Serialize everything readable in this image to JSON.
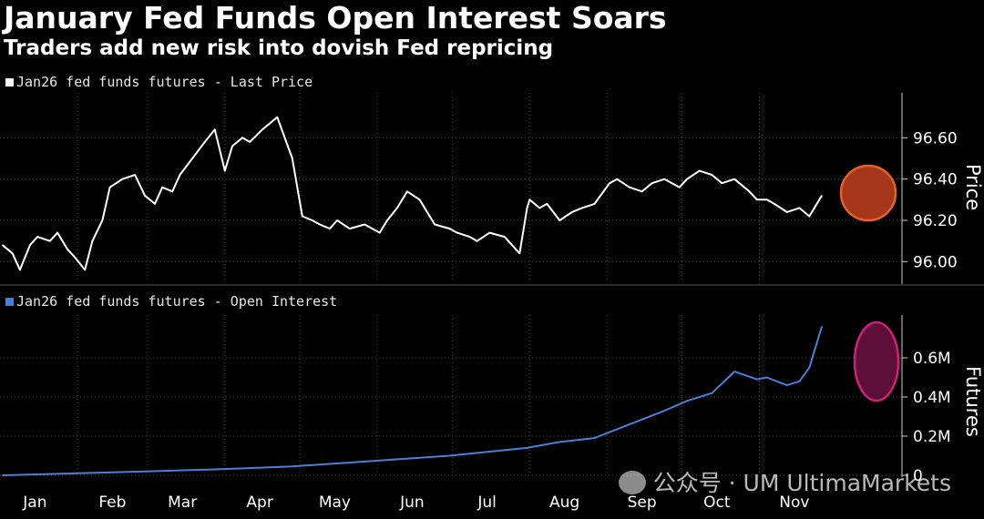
{
  "title": "January Fed Funds Open Interest Soars",
  "subtitle": "Traders add new risk into dovish Fed repricing",
  "watermark": "公众号 · UM UltimaMarkets",
  "colors": {
    "background": "#000000",
    "price_line": "#ffffff",
    "oi_line": "#4a7fd8",
    "price_highlight": "#e8602c",
    "oi_highlight": "#d0207a",
    "grid": "#4a4a4a"
  },
  "chart_data": [
    {
      "type": "line",
      "legend": "Jan26 fed funds futures - Last Price",
      "ylabel": "Price",
      "ylim": [
        95.9,
        96.8
      ],
      "yticks": [
        96.0,
        96.2,
        96.4,
        96.6
      ],
      "ytick_labels": [
        "96.00",
        "96.20",
        "96.40",
        "96.60"
      ],
      "grid": true,
      "x": [
        "Jan 2",
        "Jan 6",
        "Jan 9",
        "Jan 13",
        "Jan 16",
        "Jan 21",
        "Jan 24",
        "Jan 28",
        "Jan 31",
        "Feb 4",
        "Feb 7",
        "Feb 11",
        "Feb 14",
        "Feb 19",
        "Feb 24",
        "Feb 28",
        "Mar 4",
        "Mar 7",
        "Mar 11",
        "Mar 14",
        "Mar 19",
        "Mar 24",
        "Mar 28",
        "Apr 1",
        "Apr 4",
        "Apr 8",
        "Apr 11",
        "Apr 16",
        "Apr 22",
        "Apr 28",
        "May 2",
        "May 6",
        "May 9",
        "May 13",
        "May 16",
        "May 21",
        "May 27",
        "Jun 2",
        "Jun 5",
        "Jun 9",
        "Jun 13",
        "Jun 18",
        "Jun 24",
        "Jun 30",
        "Jul 3",
        "Jul 8",
        "Jul 11",
        "Jul 16",
        "Jul 22",
        "Jul 28",
        "Jul 31",
        "Aug 1",
        "Aug 5",
        "Aug 8",
        "Aug 13",
        "Aug 18",
        "Aug 22",
        "Aug 27",
        "Sep 2",
        "Sep 5",
        "Sep 10",
        "Sep 15",
        "Sep 19",
        "Sep 24",
        "Sep 30",
        "Oct 3",
        "Oct 8",
        "Oct 13",
        "Oct 17",
        "Oct 22",
        "Oct 28",
        "Oct 31",
        "Nov 4",
        "Nov 7",
        "Nov 12",
        "Nov 17",
        "Nov 21",
        "Nov 26"
      ],
      "values": [
        96.08,
        96.04,
        95.96,
        96.08,
        96.12,
        96.1,
        96.14,
        96.06,
        96.02,
        95.96,
        96.1,
        96.2,
        96.36,
        96.4,
        96.42,
        96.32,
        96.28,
        96.36,
        96.34,
        96.42,
        96.5,
        96.58,
        96.64,
        96.44,
        96.56,
        96.6,
        96.58,
        96.64,
        96.7,
        96.5,
        96.22,
        96.2,
        96.18,
        96.16,
        96.2,
        96.16,
        96.18,
        96.14,
        96.2,
        96.26,
        96.34,
        96.3,
        96.18,
        96.16,
        96.14,
        96.12,
        96.1,
        96.14,
        96.12,
        96.04,
        96.26,
        96.3,
        96.26,
        96.28,
        96.2,
        96.24,
        96.26,
        96.28,
        96.38,
        96.4,
        96.36,
        96.34,
        96.38,
        96.4,
        96.36,
        96.4,
        96.44,
        96.42,
        96.38,
        96.4,
        96.34,
        96.3,
        96.3,
        96.28,
        96.24,
        96.26,
        96.22,
        96.32
      ],
      "annotation": "circle around Nov price dip"
    },
    {
      "type": "line",
      "legend": "Jan26 fed funds futures - Open Interest",
      "ylabel": "Futures",
      "ylim": [
        0,
        0.8
      ],
      "yticks": [
        0,
        0.2,
        0.4,
        0.6
      ],
      "ytick_labels": [
        "0",
        "0.2M",
        "0.4M",
        "0.6M"
      ],
      "grid": true,
      "x": [
        "Jan 2",
        "Jan 31",
        "Feb 28",
        "Mar 28",
        "Apr 28",
        "May 27",
        "Jun 30",
        "Jul 31",
        "Aug 13",
        "Aug 27",
        "Sep 10",
        "Sep 24",
        "Oct 3",
        "Oct 13",
        "Oct 22",
        "Oct 31",
        "Nov 4",
        "Nov 12",
        "Nov 17",
        "Nov 21",
        "Nov 26"
      ],
      "values": [
        0.0,
        0.01,
        0.02,
        0.03,
        0.045,
        0.07,
        0.1,
        0.14,
        0.17,
        0.19,
        0.26,
        0.33,
        0.38,
        0.42,
        0.53,
        0.49,
        0.5,
        0.46,
        0.48,
        0.55,
        0.76
      ],
      "annotation": "ellipse around Nov open interest surge"
    }
  ],
  "x_axis": {
    "months": [
      "Jan",
      "Feb",
      "Mar",
      "Apr",
      "May",
      "Jun",
      "Jul",
      "Aug",
      "Sep",
      "Oct",
      "Nov"
    ]
  }
}
